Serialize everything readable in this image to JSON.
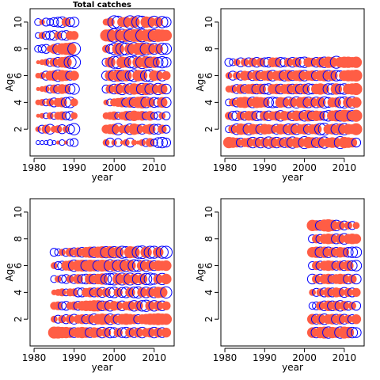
{
  "colors": {
    "positive": "#ff5d45",
    "negative": "#0000ff"
  },
  "chart_data": [
    {
      "type": "scatter",
      "title": "Total catches",
      "xlabel": "year",
      "ylabel": "Age",
      "xlim": [
        1979,
        2015
      ],
      "ylim": [
        0,
        11
      ],
      "xticks": [
        1980,
        1990,
        2000,
        2010
      ],
      "yticks": [
        2,
        4,
        6,
        8,
        10
      ],
      "years": [
        1981,
        1982,
        1983,
        1984,
        1985,
        1986,
        1987,
        1988,
        1989,
        1990,
        1998,
        1999,
        2000,
        2001,
        2002,
        2003,
        2004,
        2005,
        2006,
        2007,
        2008,
        2009,
        2010,
        2011,
        2012,
        2013
      ],
      "ages": [
        1,
        2,
        3,
        4,
        5,
        6,
        7,
        8,
        9,
        10
      ],
      "residuals": [
        [
          -0.1,
          -0.1,
          -0.1,
          -0.2,
          -0.1,
          0.1,
          -0.2,
          0.1,
          -0.3,
          -0.4,
          0.3,
          -0.5,
          0.2,
          -0.4,
          0.1,
          0.3,
          -0.5,
          0.2,
          0.1,
          0.3,
          -0.4,
          0.5,
          -0.3,
          -0.6,
          -0.7,
          -0.5
        ],
        [
          0.2,
          -0.4,
          0.5,
          -0.6,
          0.3,
          0.4,
          -0.5,
          0.3,
          -0.5,
          -0.8,
          0.5,
          0.6,
          0.7,
          -0.8,
          0.4,
          0.5,
          -0.7,
          0.8,
          0.6,
          -0.6,
          0.5,
          0.7,
          -0.6,
          -0.6,
          0.5,
          -0.4
        ],
        [
          0.1,
          0.2,
          -0.2,
          0.3,
          -0.3,
          0.4,
          0.5,
          -0.4,
          -0.5,
          0.3,
          0.3,
          0.4,
          0.5,
          -0.3,
          0.4,
          0.6,
          -0.5,
          0.7,
          0.5,
          0.6,
          -0.4,
          0.6,
          -0.3,
          -0.4,
          0.3,
          -0.4
        ],
        [
          0.2,
          0.3,
          -0.3,
          0.4,
          -0.5,
          0.5,
          0.6,
          -0.6,
          -0.7,
          0.4,
          0.2,
          -0.3,
          0.4,
          0.5,
          0.6,
          -0.5,
          0.7,
          -0.6,
          0.8,
          0.9,
          -0.7,
          0.6,
          -0.6,
          -0.5,
          0.7,
          -0.6
        ],
        [
          0.1,
          0.2,
          0.3,
          -0.4,
          0.5,
          -0.5,
          0.6,
          0.5,
          -0.6,
          -0.7,
          -0.4,
          0.5,
          -0.6,
          0.7,
          -0.8,
          0.6,
          -0.7,
          0.8,
          0.7,
          -0.8,
          0.9,
          -0.7,
          0.6,
          -0.8,
          0.7,
          -0.6
        ],
        [
          0.2,
          0.3,
          -0.5,
          0.6,
          0.7,
          -0.8,
          0.8,
          0.7,
          -0.5,
          0.6,
          -0.5,
          0.7,
          -0.8,
          0.9,
          -0.7,
          0.8,
          -0.6,
          -0.9,
          0.8,
          0.7,
          -0.8,
          -0.9,
          0.7,
          0.6,
          -0.7,
          0.5
        ],
        [
          0.1,
          0.2,
          0.3,
          -0.4,
          0.5,
          -0.6,
          0.7,
          0.8,
          -0.9,
          -1.0,
          -0.4,
          0.7,
          -0.9,
          -1.0,
          0.8,
          0.7,
          -0.8,
          -0.9,
          0.8,
          -1.0,
          0.9,
          -0.7,
          0.8,
          -0.6,
          -0.8,
          -0.6
        ],
        [
          -0.3,
          -0.4,
          -0.5,
          0.3,
          0.6,
          -0.7,
          0.8,
          0.9,
          1.0,
          -1.0,
          0.4,
          -0.5,
          -0.8,
          0.9,
          -1.0,
          -0.9,
          0.8,
          -1.0,
          0.9,
          1.0,
          -0.9,
          0.8,
          -0.7,
          0.6,
          -0.8,
          -0.7
        ],
        [
          -0.2,
          0.3,
          -0.4,
          -0.5,
          -0.6,
          0.4,
          -0.5,
          -0.6,
          0.5,
          0.5,
          0.9,
          1.0,
          -1.1,
          0.9,
          -1.0,
          1.0,
          -0.9,
          1.0,
          1.0,
          -1.0,
          0.9,
          1.0,
          -0.9,
          1.0,
          0.9,
          0.8
        ],
        [
          -0.3,
          0.2,
          -0.4,
          -0.3,
          -0.5,
          -0.6,
          -0.7,
          0.5,
          -0.5,
          -0.6,
          0.3,
          0.5,
          -1.0,
          -0.9,
          0.6,
          0.7,
          -1.0,
          0.8,
          -1.0,
          -0.9,
          0.8,
          0.7,
          -0.9,
          0.6,
          -0.8,
          -0.6
        ]
      ]
    },
    {
      "type": "scatter",
      "xlabel": "year",
      "ylabel": "Age",
      "xlim": [
        1979,
        2015
      ],
      "ylim": [
        0,
        11
      ],
      "xticks": [
        1980,
        1990,
        2000,
        2010
      ],
      "yticks": [
        2,
        4,
        6,
        8,
        10
      ],
      "years": [
        1981,
        1982,
        1983,
        1984,
        1985,
        1986,
        1987,
        1988,
        1989,
        1990,
        1991,
        1992,
        1993,
        1994,
        1995,
        1996,
        1997,
        1998,
        1999,
        2000,
        2001,
        2002,
        2003,
        2004,
        2005,
        2006,
        2007,
        2008,
        2009,
        2010,
        2011,
        2012,
        2013
      ],
      "ages": [
        1,
        2,
        3,
        4,
        5,
        6,
        7
      ],
      "residuals": [
        [
          0.8,
          0.7,
          0.6,
          -0.5,
          0.5,
          0.6,
          -0.7,
          0.6,
          -0.7,
          0.6,
          -0.8,
          0.7,
          -0.7,
          0.6,
          -0.6,
          0.7,
          -0.8,
          0.7,
          0.6,
          -0.9,
          0.8,
          0.7,
          -0.6,
          0.7,
          -0.8,
          0.6,
          0.7,
          0.6,
          -0.9,
          0.8,
          0.7,
          0.6,
          -0.5
        ],
        [
          -0.3,
          0.5,
          -0.7,
          0.8,
          0.7,
          -0.8,
          0.7,
          0.6,
          -0.6,
          0.7,
          0.6,
          0.5,
          -0.6,
          0.7,
          0.6,
          -0.7,
          0.8,
          -0.7,
          0.6,
          0.7,
          -0.6,
          0.6,
          0.7,
          -0.8,
          -0.9,
          0.6,
          0.7,
          -0.7,
          0.8,
          -0.8,
          0.7,
          0.6,
          0.9
        ],
        [
          0.4,
          -0.5,
          -0.6,
          0.5,
          -0.5,
          0.6,
          0.6,
          -0.6,
          -0.5,
          0.6,
          -0.6,
          0.5,
          0.6,
          -0.7,
          0.6,
          0.5,
          -0.6,
          0.7,
          0.6,
          -0.7,
          0.8,
          -0.6,
          0.7,
          0.6,
          -0.5,
          -0.7,
          0.7,
          0.8,
          -0.7,
          0.9,
          0.8,
          -0.7,
          0.9
        ],
        [
          -0.3,
          0.4,
          -0.5,
          0.7,
          0.8,
          0.6,
          -0.7,
          0.8,
          0.7,
          0.6,
          -0.6,
          -0.7,
          -0.6,
          0.7,
          0.6,
          -0.7,
          0.6,
          -0.8,
          0.7,
          0.8,
          -0.7,
          0.6,
          -0.7,
          0.7,
          -0.8,
          -0.6,
          0.6,
          0.6,
          -0.7,
          -0.8,
          0.7,
          -0.8,
          0.7
        ],
        [
          0.3,
          0.4,
          -0.5,
          0.6,
          -0.5,
          0.6,
          0.7,
          -0.6,
          0.7,
          -0.6,
          -0.7,
          0.6,
          0.7,
          -0.6,
          0.6,
          0.7,
          -0.6,
          0.7,
          -0.6,
          0.7,
          -0.7,
          -0.6,
          0.7,
          0.8,
          0.6,
          -0.7,
          -0.7,
          0.8,
          -0.6,
          -0.7,
          0.7,
          0.8,
          0.9
        ],
        [
          0.3,
          -0.5,
          0.4,
          -0.5,
          0.6,
          0.5,
          -0.6,
          0.7,
          -0.6,
          0.6,
          0.7,
          -0.7,
          0.6,
          0.7,
          -0.7,
          0.8,
          -0.6,
          0.7,
          0.8,
          -0.7,
          0.6,
          0.7,
          -0.6,
          0.7,
          0.8,
          -0.7,
          0.7,
          -0.7,
          -0.6,
          0.7,
          0.8,
          0.8,
          0.9
        ],
        [
          -0.4,
          -0.3,
          0.3,
          -0.5,
          0.4,
          -0.5,
          0.5,
          -0.6,
          0.5,
          -0.5,
          -0.6,
          0.6,
          0.6,
          -0.6,
          -0.5,
          0.5,
          -0.6,
          0.6,
          -0.6,
          -0.7,
          0.6,
          0.5,
          -0.6,
          0.7,
          -0.7,
          0.8,
          0.7,
          -0.9,
          0.7,
          0.8,
          0.8,
          0.7,
          0.8
        ]
      ]
    },
    {
      "type": "scatter",
      "xlabel": "year",
      "ylabel": "Age",
      "xlim": [
        1979,
        2015
      ],
      "ylim": [
        0,
        11
      ],
      "xticks": [
        1980,
        1990,
        2000,
        2010
      ],
      "yticks": [
        2,
        4,
        6,
        8,
        10
      ],
      "years": [
        1985,
        1986,
        1987,
        1988,
        1989,
        1990,
        1991,
        1992,
        1993,
        1994,
        1995,
        1996,
        1997,
        1998,
        1999,
        2000,
        2001,
        2002,
        2003,
        2004,
        2005,
        2006,
        2007,
        2008,
        2009,
        2010,
        2011,
        2012,
        2013
      ],
      "ages": [
        1,
        2,
        3,
        4,
        5,
        6,
        7
      ],
      "residuals": [
        [
          0.9,
          0.9,
          0.8,
          0.8,
          0.7,
          -0.6,
          0.7,
          0.8,
          0.7,
          -0.6,
          0.7,
          0.6,
          -0.7,
          0.6,
          -0.7,
          -0.6,
          0.5,
          -0.6,
          -0.7,
          0.6,
          -0.6,
          0.6,
          -0.7,
          0.5,
          0.6,
          -0.7,
          0.6,
          -0.6,
          0.6
        ],
        [
          0.3,
          -0.4,
          0.4,
          -0.5,
          0.5,
          -0.6,
          0.5,
          0.6,
          -0.5,
          0.6,
          -0.7,
          0.7,
          0.8,
          0.7,
          -0.7,
          0.6,
          -0.6,
          0.7,
          0.8,
          0.7,
          0.6,
          -0.5,
          0.6,
          0.7,
          0.8,
          0.8,
          0.9,
          0.8,
          0.8
        ],
        [
          0.4,
          0.5,
          -0.4,
          -0.5,
          0.4,
          0.5,
          -0.5,
          0.6,
          0.7,
          0.7,
          0.8,
          0.8,
          -0.6,
          0.6,
          -0.7,
          0.6,
          0.5,
          -0.6,
          0.5,
          0.6,
          -0.7,
          0.6,
          -0.7,
          -0.8,
          0.6,
          -0.7,
          0.6,
          -0.6,
          0.5
        ],
        [
          0.2,
          0.3,
          0.4,
          -0.3,
          0.4,
          0.4,
          -0.5,
          -0.5,
          0.5,
          0.6,
          -0.5,
          0.6,
          -0.6,
          0.5,
          -0.6,
          -0.7,
          0.5,
          -0.6,
          -0.7,
          0.6,
          -0.7,
          -0.8,
          0.6,
          -0.7,
          0.6,
          -0.7,
          0.8,
          0.7,
          -0.8
        ],
        [
          -0.3,
          0.3,
          -0.4,
          -0.5,
          0.4,
          -0.5,
          0.6,
          -0.5,
          -0.6,
          0.7,
          -0.6,
          0.7,
          0.8,
          -0.7,
          -0.8,
          -0.9,
          0.8,
          -0.9,
          0.8,
          -0.9,
          0.7,
          -0.8,
          0.7,
          -0.8,
          -0.9,
          -0.7,
          0.6,
          -0.8,
          0.7
        ],
        [
          0.3,
          -0.4,
          -0.5,
          0.6,
          0.7,
          -0.8,
          0.8,
          0.9,
          -0.7,
          0.9,
          0.8,
          -0.7,
          0.9,
          0.8,
          -0.9,
          0.8,
          -0.8,
          0.9,
          -0.9,
          0.8,
          -0.9,
          -0.8,
          0.7,
          -0.8,
          0.7,
          -0.6,
          0.7,
          0.6,
          0.7
        ],
        [
          -0.4,
          -0.3,
          0.3,
          -0.4,
          0.5,
          -0.5,
          0.6,
          -0.6,
          0.7,
          0.8,
          -0.7,
          0.8,
          0.9,
          -0.8,
          0.9,
          -0.8,
          0.8,
          -0.9,
          -0.8,
          0.9,
          0.8,
          -0.9,
          -1.0,
          0.8,
          -0.9,
          -0.9,
          0.7,
          -0.9,
          -0.9
        ]
      ]
    },
    {
      "type": "scatter",
      "xlabel": "year",
      "ylabel": "Age",
      "xlim": [
        1979,
        2015
      ],
      "ylim": [
        0,
        11
      ],
      "xticks": [
        1980,
        1990,
        2000,
        2010
      ],
      "yticks": [
        2,
        4,
        6,
        8,
        10
      ],
      "years": [
        2002,
        2003,
        2004,
        2005,
        2006,
        2007,
        2008,
        2009,
        2010,
        2011,
        2012,
        2013
      ],
      "ages": [
        1,
        2,
        3,
        4,
        5,
        6,
        7,
        8,
        9
      ],
      "residuals": [
        [
          0.7,
          -0.7,
          0.8,
          0.9,
          -0.8,
          0.8,
          0.7,
          -0.8,
          0.9,
          0.8,
          -0.7,
          -0.6
        ],
        [
          0.7,
          -0.6,
          0.7,
          -0.7,
          0.6,
          0.7,
          -0.6,
          0.7,
          -0.6,
          0.5,
          -0.5,
          0.6
        ],
        [
          -0.3,
          -0.4,
          0.5,
          -0.6,
          0.7,
          -0.6,
          0.6,
          -0.7,
          0.6,
          -0.5,
          0.4,
          -0.5
        ],
        [
          0.3,
          -0.4,
          0.4,
          -0.5,
          0.6,
          -0.5,
          0.6,
          0.5,
          -0.6,
          0.5,
          -0.5,
          0.5
        ],
        [
          -0.6,
          0.5,
          -0.6,
          0.6,
          0.7,
          -0.5,
          0.6,
          0.7,
          0.6,
          -0.6,
          0.5,
          -0.6
        ],
        [
          -0.4,
          0.5,
          -0.5,
          0.6,
          0.7,
          0.6,
          -0.5,
          0.6,
          -0.6,
          0.7,
          -0.6,
          -0.7
        ],
        [
          0.7,
          0.8,
          -0.7,
          0.8,
          -0.7,
          0.6,
          -0.6,
          0.7,
          0.6,
          -0.6,
          -0.7,
          -0.7
        ],
        [
          -0.4,
          0.5,
          -0.5,
          0.6,
          0.7,
          0.6,
          -0.6,
          0.6,
          -0.7,
          0.6,
          0.7,
          0.6
        ],
        [
          0.8,
          0.7,
          -0.6,
          0.9,
          1.0,
          0.8,
          -0.7,
          0.5,
          -0.5,
          0.4,
          -0.4,
          0.3
        ]
      ]
    }
  ]
}
